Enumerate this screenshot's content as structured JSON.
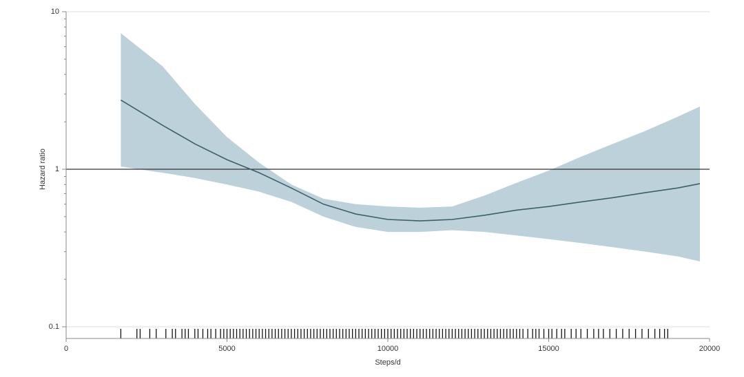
{
  "chart_data": {
    "type": "line",
    "ylabel": "Hazard ratio",
    "xlabel": "Steps/d",
    "x": [
      1700,
      3000,
      4000,
      5000,
      6000,
      7000,
      8000,
      9000,
      10000,
      11000,
      12000,
      13000,
      14000,
      15000,
      16000,
      17000,
      18000,
      19000,
      19700
    ],
    "values": [
      2.75,
      1.9,
      1.45,
      1.15,
      0.95,
      0.76,
      0.6,
      0.52,
      0.48,
      0.47,
      0.48,
      0.51,
      0.55,
      0.58,
      0.62,
      0.66,
      0.71,
      0.76,
      0.81
    ],
    "upper": [
      7.3,
      4.5,
      2.6,
      1.6,
      1.1,
      0.8,
      0.65,
      0.6,
      0.58,
      0.57,
      0.58,
      0.68,
      0.82,
      0.98,
      1.2,
      1.45,
      1.75,
      2.15,
      2.5
    ],
    "lower": [
      1.04,
      0.95,
      0.88,
      0.8,
      0.72,
      0.62,
      0.5,
      0.43,
      0.4,
      0.4,
      0.41,
      0.4,
      0.38,
      0.36,
      0.34,
      0.32,
      0.3,
      0.28,
      0.26
    ],
    "color": "#3d5f68",
    "band_color": "#bcd1da",
    "reference_line": 1,
    "reference_color": "#333333",
    "rug": [
      1700,
      2200,
      2300,
      2600,
      2800,
      3100,
      3300,
      3400,
      3600,
      3700,
      3800,
      4000,
      4100,
      4250,
      4400,
      4500,
      4650,
      4800,
      4900,
      5000,
      5100,
      5200,
      5300,
      5400,
      5500,
      5600,
      5700,
      5800,
      5900,
      6000,
      6100,
      6200,
      6300,
      6400,
      6500,
      6600,
      6700,
      6800,
      6900,
      7000,
      7100,
      7200,
      7300,
      7400,
      7500,
      7600,
      7700,
      7800,
      7900,
      8000,
      8100,
      8200,
      8300,
      8400,
      8500,
      8600,
      8700,
      8800,
      8900,
      9000,
      9100,
      9200,
      9300,
      9400,
      9500,
      9600,
      9700,
      9800,
      9900,
      10000,
      10100,
      10200,
      10300,
      10400,
      10500,
      10600,
      10700,
      10800,
      10900,
      11000,
      11100,
      11200,
      11300,
      11400,
      11500,
      11600,
      11700,
      11800,
      11900,
      12000,
      12100,
      12200,
      12300,
      12400,
      12500,
      12600,
      12700,
      12800,
      12900,
      13000,
      13100,
      13200,
      13300,
      13400,
      13500,
      13600,
      13700,
      13800,
      13900,
      14000,
      14100,
      14200,
      14350,
      14500,
      14600,
      14700,
      14850,
      15000,
      15100,
      15250,
      15400,
      15500,
      15700,
      15850,
      16000,
      16200,
      16400,
      16550,
      16700,
      16900,
      17100,
      17300,
      17500,
      17700,
      17900,
      18100,
      18300,
      18450,
      18600,
      18700
    ],
    "xlim": [
      0,
      20000
    ],
    "xticks": [
      0,
      5000,
      10000,
      15000,
      20000
    ],
    "ylim": [
      0.1,
      10
    ],
    "yticks": [
      0.1,
      1,
      10
    ],
    "log_y": true,
    "yminorticks": [
      0.2,
      0.3,
      0.4,
      0.5,
      0.6,
      0.7,
      0.8,
      0.9,
      2,
      3,
      4,
      5,
      6,
      7,
      8,
      9
    ],
    "grid": true
  }
}
